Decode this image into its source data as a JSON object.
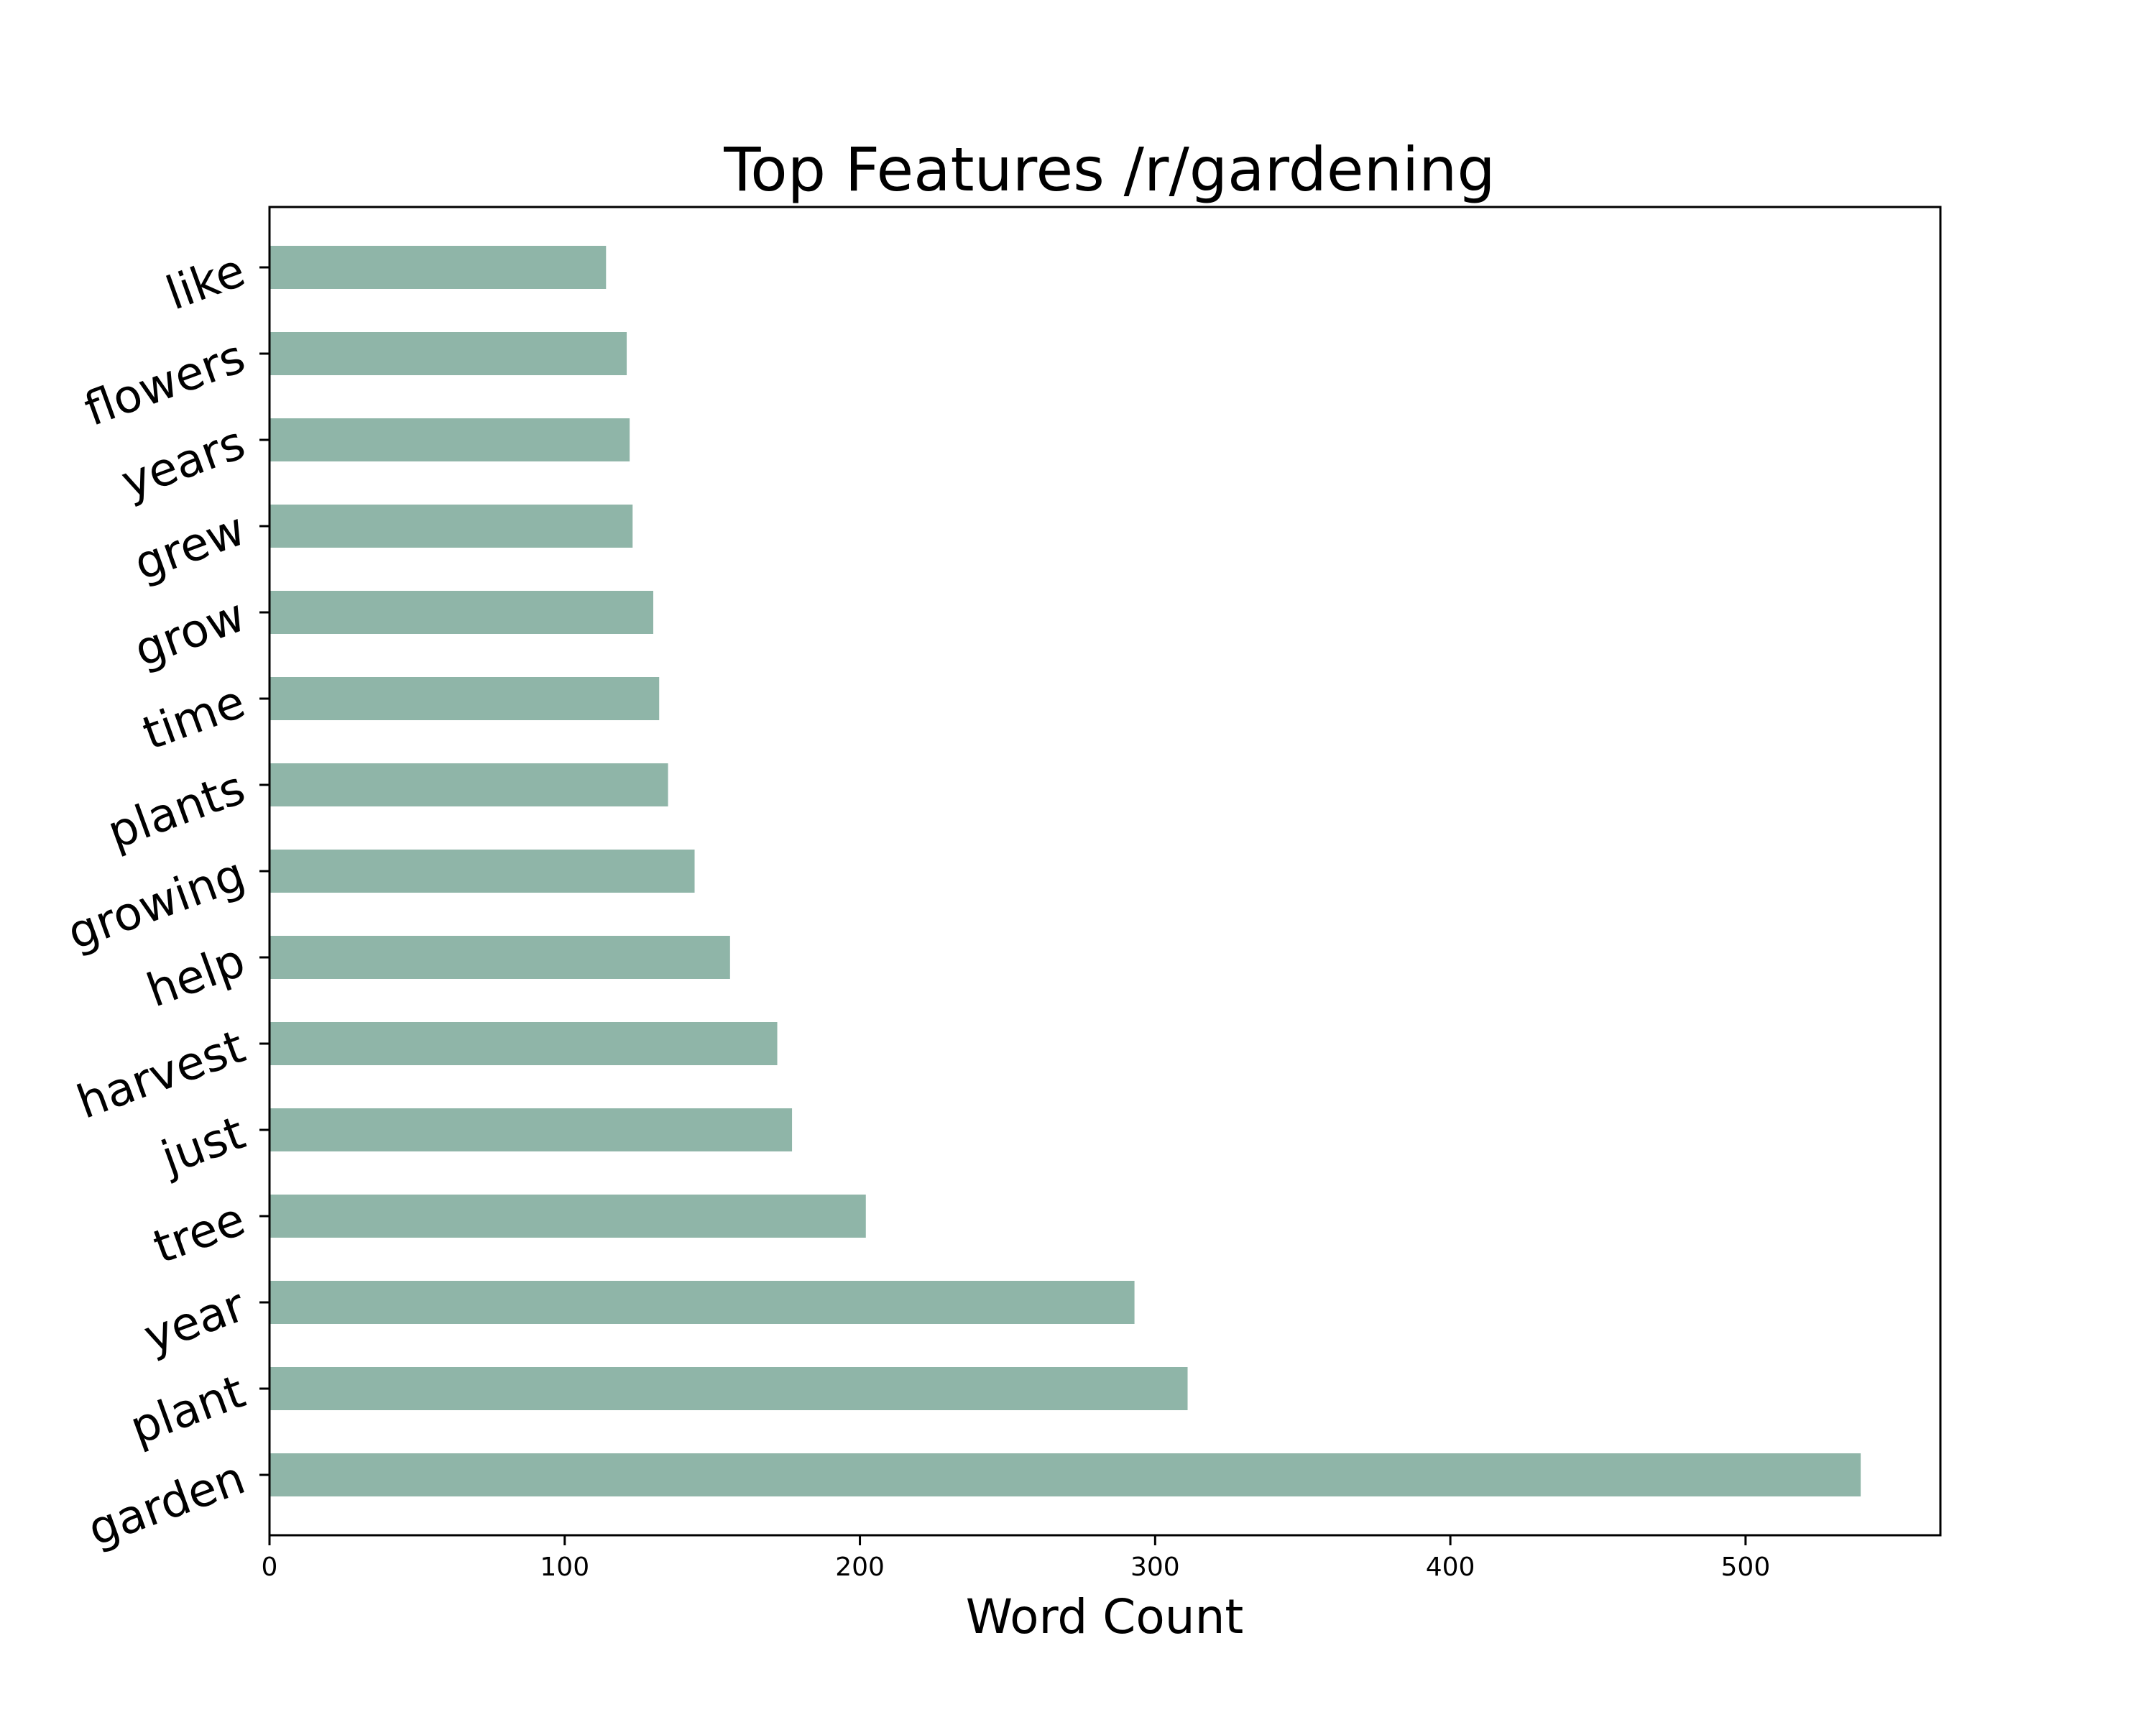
{
  "chart_data": {
    "type": "bar",
    "orientation": "horizontal",
    "title": "Top Features /r/gardening",
    "xlabel": "Word Count",
    "ylabel": "",
    "categories": [
      "garden",
      "plant",
      "year",
      "tree",
      "just",
      "harvest",
      "help",
      "growing",
      "plants",
      "time",
      "grow",
      "grew",
      "years",
      "flowers",
      "like"
    ],
    "values": [
      539,
      311,
      293,
      202,
      177,
      172,
      156,
      144,
      135,
      132,
      130,
      123,
      122,
      121,
      114
    ],
    "xlim": [
      0,
      566
    ],
    "x_ticks": [
      0,
      100,
      200,
      300,
      400,
      500
    ],
    "bar_color": "#8fb5a8",
    "grid": false,
    "legend": "none"
  }
}
